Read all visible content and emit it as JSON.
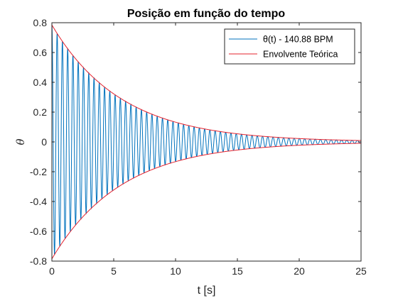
{
  "chart_data": {
    "type": "line",
    "title": "Posição em função do tempo",
    "xlabel": "t [s]",
    "ylabel": "θ",
    "xlim": [
      0,
      25
    ],
    "ylim": [
      -0.8,
      0.8
    ],
    "xticks": [
      0,
      5,
      10,
      15,
      20,
      25
    ],
    "yticks": [
      -0.8,
      -0.6,
      -0.4,
      -0.2,
      0,
      0.2,
      0.4,
      0.6,
      0.8
    ],
    "grid": false,
    "legend_position": "top-right",
    "series": [
      {
        "name": "θ(t) - 140.88 BPM",
        "color": "#0072BD",
        "model": "damped_cosine",
        "amplitude": 0.785,
        "decay_rate": 0.178,
        "frequency_bpm": 140.88,
        "x_range": [
          0,
          25
        ]
      },
      {
        "name": "Envolvente Teórica",
        "color": "#E5232E",
        "model": "exponential_envelope",
        "amplitude": 0.785,
        "decay_rate": 0.178,
        "x_range": [
          0,
          25
        ]
      }
    ]
  }
}
